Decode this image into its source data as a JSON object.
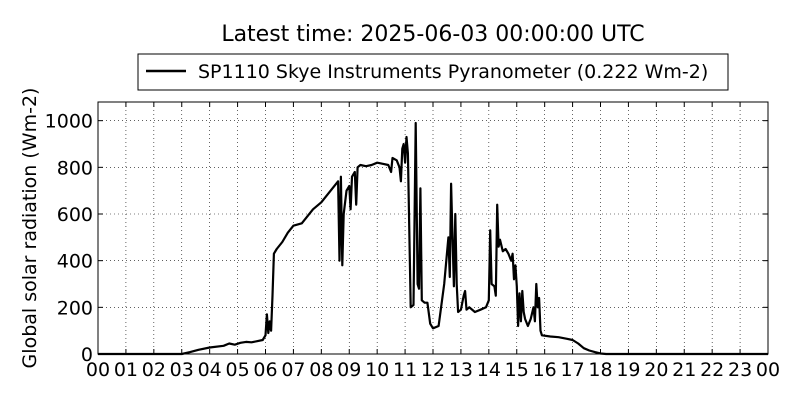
{
  "chart_data": {
    "type": "line",
    "title": "Latest time: 2025-06-03 00:00:00 UTC",
    "ylabel": "Global solar radiation (Wm-2)",
    "xlabel": "",
    "xlim": [
      0,
      24
    ],
    "ylim": [
      0,
      1080
    ],
    "grid": true,
    "legend_position": "top-center",
    "x_ticks": [
      0,
      1,
      2,
      3,
      4,
      5,
      6,
      7,
      8,
      9,
      10,
      11,
      12,
      13,
      14,
      15,
      16,
      17,
      18,
      19,
      20,
      21,
      22,
      23,
      24
    ],
    "x_tick_labels": [
      "00",
      "01",
      "02",
      "03",
      "04",
      "05",
      "06",
      "07",
      "08",
      "09",
      "10",
      "11",
      "12",
      "13",
      "14",
      "15",
      "16",
      "17",
      "18",
      "19",
      "20",
      "21",
      "22",
      "23",
      "00"
    ],
    "y_ticks": [
      0,
      200,
      400,
      600,
      800,
      1000
    ],
    "y_tick_labels": [
      "0",
      "200",
      "400",
      "600",
      "800",
      "1000"
    ],
    "series": [
      {
        "name": "SP1110 Skye Instruments Pyranometer (0.222 Wm-2)",
        "color": "#000000",
        "points": [
          [
            0.0,
            0
          ],
          [
            3.0,
            0
          ],
          [
            3.3,
            8
          ],
          [
            3.6,
            18
          ],
          [
            4.0,
            28
          ],
          [
            4.5,
            35
          ],
          [
            4.7,
            45
          ],
          [
            4.9,
            40
          ],
          [
            5.1,
            48
          ],
          [
            5.3,
            52
          ],
          [
            5.5,
            50
          ],
          [
            5.7,
            55
          ],
          [
            5.9,
            60
          ],
          [
            6.0,
            80
          ],
          [
            6.05,
            170
          ],
          [
            6.1,
            90
          ],
          [
            6.15,
            140
          ],
          [
            6.2,
            100
          ],
          [
            6.25,
            250
          ],
          [
            6.3,
            430
          ],
          [
            6.4,
            450
          ],
          [
            6.6,
            480
          ],
          [
            6.8,
            520
          ],
          [
            7.0,
            550
          ],
          [
            7.3,
            560
          ],
          [
            7.5,
            590
          ],
          [
            7.7,
            620
          ],
          [
            8.0,
            650
          ],
          [
            8.2,
            680
          ],
          [
            8.4,
            710
          ],
          [
            8.6,
            740
          ],
          [
            8.65,
            400
          ],
          [
            8.7,
            760
          ],
          [
            8.75,
            380
          ],
          [
            8.8,
            600
          ],
          [
            8.9,
            700
          ],
          [
            9.0,
            720
          ],
          [
            9.05,
            620
          ],
          [
            9.1,
            760
          ],
          [
            9.2,
            780
          ],
          [
            9.25,
            640
          ],
          [
            9.3,
            800
          ],
          [
            9.4,
            810
          ],
          [
            9.6,
            805
          ],
          [
            9.8,
            810
          ],
          [
            10.0,
            820
          ],
          [
            10.2,
            815
          ],
          [
            10.4,
            810
          ],
          [
            10.5,
            780
          ],
          [
            10.55,
            840
          ],
          [
            10.7,
            830
          ],
          [
            10.8,
            800
          ],
          [
            10.85,
            740
          ],
          [
            10.9,
            880
          ],
          [
            10.95,
            900
          ],
          [
            11.0,
            820
          ],
          [
            11.05,
            930
          ],
          [
            11.1,
            860
          ],
          [
            11.2,
            200
          ],
          [
            11.3,
            210
          ],
          [
            11.38,
            990
          ],
          [
            11.45,
            300
          ],
          [
            11.5,
            280
          ],
          [
            11.55,
            710
          ],
          [
            11.6,
            230
          ],
          [
            11.7,
            220
          ],
          [
            11.8,
            220
          ],
          [
            11.9,
            130
          ],
          [
            12.0,
            110
          ],
          [
            12.2,
            120
          ],
          [
            12.4,
            300
          ],
          [
            12.55,
            500
          ],
          [
            12.6,
            330
          ],
          [
            12.65,
            730
          ],
          [
            12.7,
            500
          ],
          [
            12.75,
            290
          ],
          [
            12.8,
            600
          ],
          [
            12.85,
            300
          ],
          [
            12.9,
            180
          ],
          [
            13.0,
            190
          ],
          [
            13.1,
            250
          ],
          [
            13.15,
            270
          ],
          [
            13.2,
            190
          ],
          [
            13.3,
            200
          ],
          [
            13.5,
            180
          ],
          [
            13.7,
            190
          ],
          [
            13.9,
            200
          ],
          [
            14.0,
            230
          ],
          [
            14.05,
            530
          ],
          [
            14.1,
            300
          ],
          [
            14.2,
            290
          ],
          [
            14.25,
            250
          ],
          [
            14.3,
            640
          ],
          [
            14.35,
            460
          ],
          [
            14.4,
            490
          ],
          [
            14.5,
            440
          ],
          [
            14.6,
            450
          ],
          [
            14.7,
            430
          ],
          [
            14.8,
            400
          ],
          [
            14.85,
            430
          ],
          [
            14.9,
            320
          ],
          [
            14.95,
            380
          ],
          [
            15.0,
            290
          ],
          [
            15.05,
            120
          ],
          [
            15.1,
            260
          ],
          [
            15.15,
            140
          ],
          [
            15.2,
            270
          ],
          [
            15.25,
            180
          ],
          [
            15.3,
            150
          ],
          [
            15.4,
            120
          ],
          [
            15.5,
            150
          ],
          [
            15.6,
            200
          ],
          [
            15.65,
            140
          ],
          [
            15.7,
            300
          ],
          [
            15.75,
            200
          ],
          [
            15.8,
            240
          ],
          [
            15.85,
            100
          ],
          [
            15.9,
            80
          ],
          [
            16.2,
            75
          ],
          [
            16.5,
            72
          ],
          [
            16.8,
            65
          ],
          [
            17.0,
            60
          ],
          [
            17.2,
            45
          ],
          [
            17.4,
            25
          ],
          [
            17.6,
            15
          ],
          [
            17.8,
            8
          ],
          [
            18.0,
            2
          ],
          [
            18.2,
            0
          ],
          [
            24.0,
            0
          ]
        ]
      }
    ]
  }
}
